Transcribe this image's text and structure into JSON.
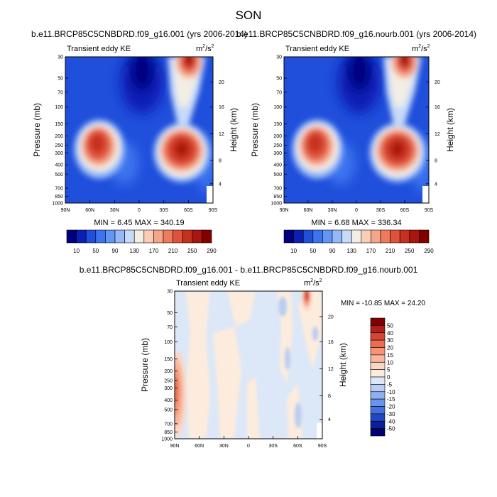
{
  "page": {
    "title": "SON"
  },
  "panels": [
    {
      "id": "p1",
      "title": "b.e11.BRCP85C5CNBDRD.f09_g16.001 (yrs 2006-2014)",
      "left_label": "Transient eddy KE",
      "units_base": "m",
      "units_sup1": "2",
      "units_mid": "/s",
      "units_sup2": "2",
      "stats": "MIN =  6.45  MAX = 340.19"
    },
    {
      "id": "p2",
      "title": "b.e11.BRCP85C5CNBDRD.f09_g16.nourb.001 (yrs 2006-2014)",
      "left_label": "Transient eddy KE",
      "units_base": "m",
      "units_sup1": "2",
      "units_mid": "/s",
      "units_sup2": "2",
      "stats": "MIN =  6.68  MAX = 336.34"
    },
    {
      "id": "p3",
      "title": "b.e11.BRCP85C5CNBDRD.f09_g16.001 - b.e11.BRCP85C5CNBDRD.f09_g16.nourb.001",
      "left_label": "Transient eddy KE",
      "units_base": "m",
      "units_sup1": "2",
      "units_mid": "/s",
      "units_sup2": "2",
      "stats": "MIN = -10.85  MAX =  24.20"
    }
  ],
  "axes": {
    "ylabel": "Pressure (mb)",
    "ylabel_right": "Height (km)",
    "x_ticks": [
      "90N",
      "60N",
      "30N",
      "0",
      "30S",
      "60S",
      "90S"
    ],
    "y_ticks": [
      "30",
      "50",
      "70",
      "100",
      "150",
      "200",
      "250",
      "300",
      "400",
      "500",
      "700",
      "850",
      "1000"
    ],
    "height_ticks": [
      "20",
      "16",
      "12",
      "8",
      "4"
    ]
  },
  "colorbars": {
    "horizontal_labels": [
      "10",
      "50",
      "90",
      "130",
      "170",
      "210",
      "250",
      "290"
    ],
    "horizontal_colors": [
      "#00007e",
      "#0c1fb5",
      "#1f4fdb",
      "#3c74ef",
      "#6395f5",
      "#95b9f8",
      "#c6daf9",
      "#f3eee4",
      "#f9cdb6",
      "#f6a588",
      "#ef7b5d",
      "#e0523c",
      "#c6301f",
      "#a91510",
      "#820000"
    ],
    "vertical_labels": [
      "50",
      "40",
      "30",
      "20",
      "15",
      "10",
      "5",
      "0",
      "-5",
      "-10",
      "-15",
      "-20",
      "-30",
      "-40",
      "-50"
    ],
    "vertical_colors": [
      "#820000",
      "#b0201a",
      "#d44532",
      "#ec6c50",
      "#f59475",
      "#f8b69c",
      "#fbd6c2",
      "#fdecdd",
      "#dce7f7",
      "#b7cdf3",
      "#8fb0ee",
      "#6a93ea",
      "#4470df",
      "#2346c4",
      "#0a1f98",
      "#000070"
    ]
  },
  "chart_data": [
    {
      "type": "heatmap",
      "title": "b.e11.BRCP85C5CNBDRD.f09_g16.001 (yrs 2006-2014)",
      "variable": "Transient eddy KE",
      "units": "m^2/s^2",
      "x": [
        "90N",
        "60N",
        "30N",
        "0",
        "30S",
        "60S",
        "90S"
      ],
      "y_pressure_mb": [
        30,
        50,
        70,
        100,
        150,
        200,
        250,
        300,
        400,
        500,
        700,
        850,
        1000
      ],
      "min": 6.45,
      "max": 340.19,
      "color_levels": [
        10,
        30,
        50,
        70,
        90,
        110,
        130,
        150,
        170,
        190,
        210,
        230,
        250,
        270,
        290
      ],
      "features": [
        {
          "lat": -47,
          "p": 250,
          "value": 280
        },
        {
          "lat": 58,
          "p": 275,
          "value": 300
        },
        {
          "lat": 67,
          "p": 33,
          "value": 300
        },
        {
          "lat": -5,
          "p": 45,
          "value": 10
        }
      ]
    },
    {
      "type": "heatmap",
      "title": "b.e11.BRCP85C5CNBDRD.f09_g16.nourb.001 (yrs 2006-2014)",
      "variable": "Transient eddy KE",
      "units": "m^2/s^2",
      "x": [
        "90N",
        "60N",
        "30N",
        "0",
        "30S",
        "60S",
        "90S"
      ],
      "y_pressure_mb": [
        30,
        50,
        70,
        100,
        150,
        200,
        250,
        300,
        400,
        500,
        700,
        850,
        1000
      ],
      "min": 6.68,
      "max": 336.34,
      "color_levels": [
        10,
        30,
        50,
        70,
        90,
        110,
        130,
        150,
        170,
        190,
        210,
        230,
        250,
        270,
        290
      ],
      "features": [
        {
          "lat": -47,
          "p": 250,
          "value": 275
        },
        {
          "lat": 58,
          "p": 275,
          "value": 295
        },
        {
          "lat": 67,
          "p": 33,
          "value": 300
        },
        {
          "lat": -5,
          "p": 45,
          "value": 10
        }
      ]
    },
    {
      "type": "heatmap",
      "title": "b.e11.BRCP85C5CNBDRD.f09_g16.001 - b.e11.BRCP85C5CNBDRD.f09_g16.nourb.001",
      "variable": "Transient eddy KE",
      "units": "m^2/s^2",
      "x": [
        "90N",
        "60N",
        "30N",
        "0",
        "30S",
        "60S",
        "90S"
      ],
      "y_pressure_mb": [
        30,
        50,
        70,
        100,
        150,
        200,
        250,
        300,
        400,
        500,
        700,
        850,
        1000
      ],
      "min": -10.85,
      "max": 24.2,
      "color_levels": [
        -50,
        -40,
        -30,
        -20,
        -15,
        -10,
        -5,
        0,
        5,
        10,
        15,
        20,
        30,
        40,
        50
      ],
      "features": [
        {
          "lat": -85,
          "p": 300,
          "value": 20
        },
        {
          "lat": 72,
          "p": 35,
          "value": 20
        },
        {
          "lat": 40,
          "p": 100,
          "value": -8
        }
      ]
    }
  ]
}
